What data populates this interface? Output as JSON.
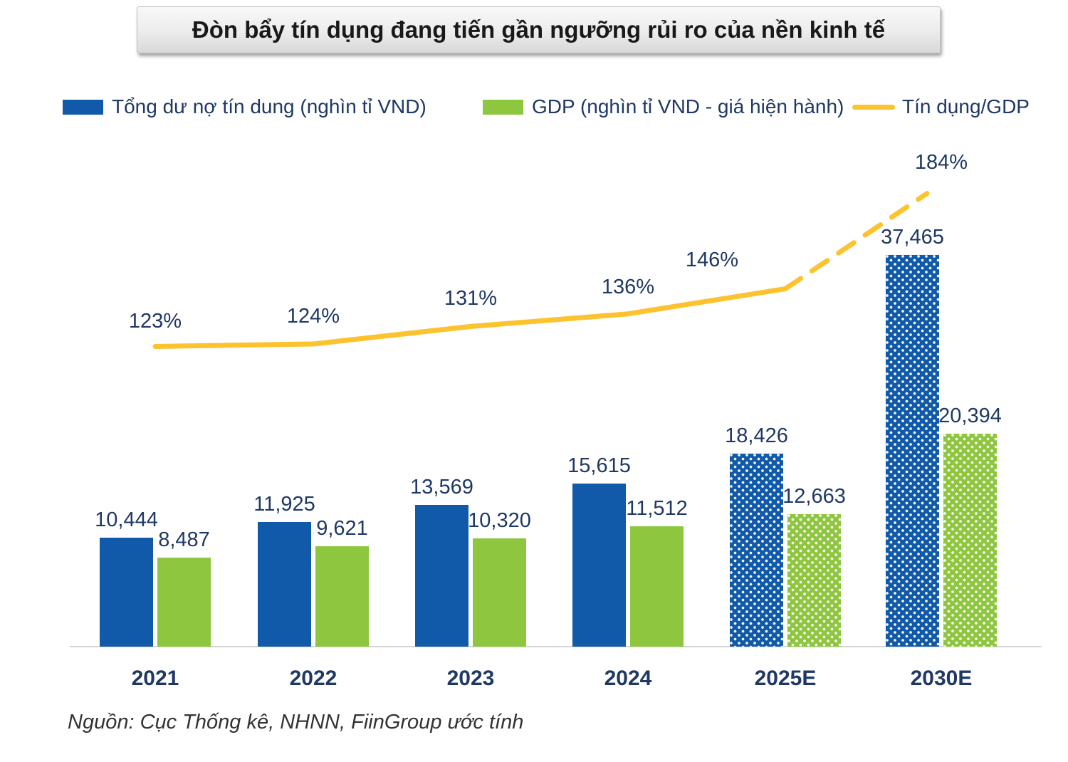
{
  "title": "Đòn bẩy tín dụng đang tiến gần ngưỡng rủi ro của nền kinh tế",
  "legend": [
    {
      "label": "Tổng dư nợ tín dung (nghìn tỉ VND)",
      "color": "#115AA9",
      "swatch": "square"
    },
    {
      "label": "GDP (nghìn tỉ VND - giá hiện hành)",
      "color": "#8FC640",
      "swatch": "square"
    },
    {
      "label": "Tín dụng/GDP",
      "color": "#FDC32E",
      "swatch": "line"
    }
  ],
  "source": "Nguồn: Cục Thống kê, NHNN, FiinGroup ước tính",
  "colors": {
    "credit_bar": "#115AA9",
    "gdp_bar": "#8FC640",
    "ratio_line": "#FDC32E",
    "label_text": "#1F3864",
    "axis": "#D6D6D6"
  },
  "chart_data": {
    "type": "bar",
    "subtype": "grouped-bars-with-line-overlay",
    "categories": [
      "2021",
      "2022",
      "2023",
      "2024",
      "2025E",
      "2030E"
    ],
    "series": [
      {
        "name": "Tổng dư nợ tín dung (nghìn tỉ VND)",
        "type": "bar",
        "color": "#115AA9",
        "values": [
          10444,
          11925,
          13569,
          15615,
          18426,
          37465
        ],
        "labels": [
          "10,444",
          "11,925",
          "13,569",
          "15,615",
          "18,426",
          "37,465"
        ],
        "estimated": [
          false,
          false,
          false,
          false,
          true,
          true
        ]
      },
      {
        "name": "GDP (nghìn tỉ VND - giá hiện hành)",
        "type": "bar",
        "color": "#8FC640",
        "values": [
          8487,
          9621,
          10320,
          11512,
          12663,
          20394
        ],
        "labels": [
          "8,487",
          "9,621",
          "10,320",
          "11,512",
          "12,663",
          "20,394"
        ],
        "estimated": [
          false,
          false,
          false,
          false,
          true,
          true
        ]
      },
      {
        "name": "Tín dụng/GDP",
        "type": "line",
        "color": "#FDC32E",
        "values": [
          123,
          124,
          131,
          136,
          146,
          184
        ],
        "labels": [
          "123%",
          "124%",
          "131%",
          "136%",
          "146%",
          "184%"
        ],
        "dashed_from_index": 4
      }
    ],
    "ylabel": "",
    "xlabel": "",
    "ylim_bars": [
      0,
      40000
    ],
    "ylim_line_pct": [
      0,
      200
    ],
    "grid": false,
    "legend_position": "top"
  }
}
